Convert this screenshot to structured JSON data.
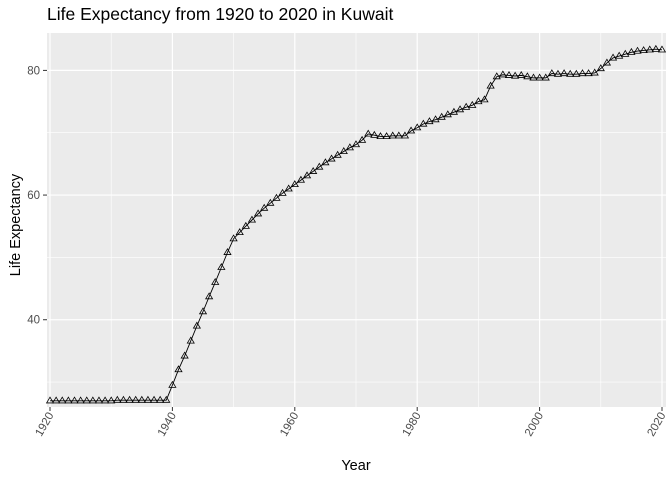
{
  "chart_data": {
    "type": "line",
    "title": "Life Expectancy from 1920 to 2020 in Kuwait",
    "xlabel": "Year",
    "ylabel": "Life Expectancy",
    "xlim": [
      1920,
      2020
    ],
    "ylim": [
      26,
      86
    ],
    "x_ticks": [
      1920,
      1940,
      1960,
      1980,
      2000,
      2020
    ],
    "y_ticks": [
      40,
      60,
      80
    ],
    "grid": true,
    "marker": "triangle",
    "colors": {
      "panel": "#ebebeb",
      "grid": "#ffffff",
      "line": "#000000"
    },
    "series": [
      {
        "x": [
          1920,
          1921,
          1922,
          1923,
          1924,
          1925,
          1926,
          1927,
          1928,
          1929,
          1930,
          1931,
          1932,
          1933,
          1934,
          1935,
          1936,
          1937,
          1938,
          1939,
          1940,
          1941,
          1942,
          1943,
          1944,
          1945,
          1946,
          1947,
          1948,
          1949,
          1950,
          1951,
          1952,
          1953,
          1954,
          1955,
          1956,
          1957,
          1958,
          1959,
          1960,
          1961,
          1962,
          1963,
          1964,
          1965,
          1966,
          1967,
          1968,
          1969,
          1970,
          1971,
          1972,
          1973,
          1974,
          1975,
          1976,
          1977,
          1978,
          1979,
          1980,
          1981,
          1982,
          1983,
          1984,
          1985,
          1986,
          1987,
          1988,
          1989,
          1990,
          1991,
          1992,
          1993,
          1994,
          1995,
          1996,
          1997,
          1998,
          1999,
          2000,
          2001,
          2002,
          2003,
          2004,
          2005,
          2006,
          2007,
          2008,
          2009,
          2010,
          2011,
          2012,
          2013,
          2014,
          2015,
          2016,
          2017,
          2018,
          2019,
          2020
        ],
        "y": [
          27.0,
          27.0,
          27.0,
          27.0,
          27.0,
          27.0,
          27.0,
          27.0,
          27.0,
          27.0,
          27.0,
          27.1,
          27.1,
          27.1,
          27.1,
          27.1,
          27.1,
          27.1,
          27.1,
          27.1,
          29.5,
          32.0,
          34.2,
          36.6,
          39.0,
          41.3,
          43.7,
          46.0,
          48.4,
          50.8,
          53.0,
          54.0,
          55.0,
          56.0,
          57.0,
          57.9,
          58.7,
          59.5,
          60.3,
          61.0,
          61.7,
          62.4,
          63.1,
          63.8,
          64.5,
          65.2,
          65.8,
          66.4,
          67.0,
          67.6,
          68.1,
          68.8,
          69.8,
          69.6,
          69.4,
          69.4,
          69.5,
          69.5,
          69.5,
          70.3,
          70.8,
          71.4,
          71.8,
          72.1,
          72.5,
          72.9,
          73.3,
          73.7,
          74.1,
          74.4,
          75.0,
          75.3,
          77.5,
          79.0,
          79.3,
          79.2,
          79.1,
          79.2,
          79.0,
          78.8,
          78.8,
          78.8,
          79.5,
          79.4,
          79.5,
          79.4,
          79.4,
          79.5,
          79.5,
          79.6,
          80.3,
          81.2,
          82.0,
          82.3,
          82.6,
          82.9,
          83.1,
          83.2,
          83.3,
          83.4,
          83.3
        ]
      }
    ]
  }
}
